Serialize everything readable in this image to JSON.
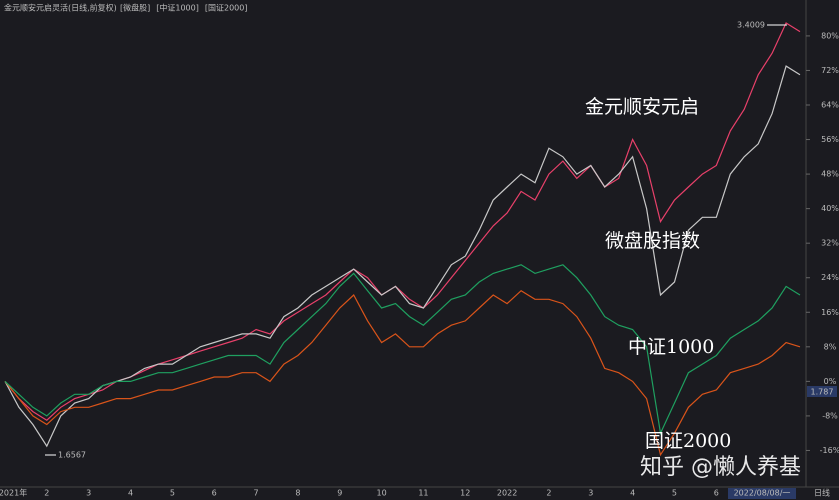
{
  "chart_data": {
    "type": "line",
    "title": "金元顺安元启灵活(日线,前复权)",
    "legend": [
      {
        "label": "[微盘股]",
        "series": 1
      },
      {
        "label": "[中证1000]",
        "series": 2
      },
      {
        "label": "[国证2000]",
        "series": 3
      }
    ],
    "categories": [
      "2021年",
      null,
      null,
      "2",
      null,
      null,
      "3",
      null,
      null,
      "4",
      null,
      null,
      "5",
      null,
      null,
      "6",
      null,
      null,
      "7",
      null,
      null,
      "8",
      null,
      null,
      "9",
      null,
      null,
      "10",
      null,
      null,
      "11",
      null,
      null,
      "12",
      null,
      null,
      "2022",
      null,
      null,
      "2",
      null,
      null,
      "3",
      null,
      null,
      "4",
      null,
      null,
      "5",
      null,
      null,
      "6",
      null,
      null,
      "7",
      null,
      null,
      "2022/08/08/一"
    ],
    "period_label": "日线",
    "series": [
      {
        "name": "金元顺安元启",
        "color": "#e8406a",
        "values": [
          0,
          -4,
          -7,
          -9,
          -6,
          -4,
          -3,
          -2,
          0,
          1,
          2.5,
          4,
          5,
          6,
          7,
          8,
          9,
          10,
          12,
          11,
          14,
          16,
          18,
          20,
          23,
          26,
          24,
          20,
          22,
          19,
          17,
          20,
          24,
          28,
          32,
          36,
          39,
          44,
          42,
          48,
          51,
          47,
          50,
          45,
          47,
          56,
          50,
          37,
          42,
          45,
          48,
          50,
          58,
          63,
          71,
          76,
          83,
          81
        ]
      },
      {
        "name": "微盘股指数",
        "color": "#c8c8c8",
        "values": [
          0,
          -6,
          -10,
          -15,
          -8,
          -5,
          -4,
          -1,
          0,
          1,
          3,
          4,
          4,
          6,
          8,
          9,
          10,
          11,
          11,
          10,
          15,
          17,
          20,
          22,
          24,
          26,
          23,
          20,
          22,
          18,
          17,
          22,
          27,
          29,
          35,
          42,
          45,
          48,
          46,
          54,
          52,
          48,
          50,
          45,
          48,
          52,
          40,
          20,
          23,
          35,
          38,
          38,
          48,
          52,
          55,
          62,
          73,
          71
        ]
      },
      {
        "name": "中证1000",
        "color": "#d9541a",
        "values": [
          0,
          -4,
          -8,
          -10,
          -7,
          -6,
          -6,
          -5,
          -4,
          -4,
          -3,
          -2,
          -2,
          -1,
          0,
          1,
          1,
          2,
          2,
          0,
          4,
          6,
          9,
          13,
          17,
          20,
          14,
          9,
          11,
          8,
          8,
          11,
          13,
          14,
          17,
          20,
          18,
          21,
          19,
          19,
          18,
          15,
          10,
          3,
          2,
          0,
          -4,
          -17,
          -12,
          -6,
          -3,
          -2,
          2,
          3,
          4,
          6,
          9,
          8
        ]
      },
      {
        "name": "国证2000",
        "color": "#1fa060",
        "values": [
          0,
          -3,
          -6,
          -8,
          -5,
          -3,
          -3,
          -1,
          0,
          0,
          1,
          2,
          2,
          3,
          4,
          5,
          6,
          6,
          6,
          4,
          9,
          12,
          15,
          18,
          22,
          25,
          21,
          17,
          18,
          15,
          13,
          16,
          19,
          20,
          23,
          25,
          26,
          27,
          25,
          26,
          27,
          24,
          20,
          15,
          13,
          12,
          8,
          -12,
          -5,
          2,
          4,
          6,
          10,
          12,
          14,
          17,
          22,
          20
        ]
      }
    ],
    "annotations": {
      "high": "3.4009",
      "low": "1.6567",
      "current": "1.787"
    },
    "watermark": "知乎 @懒人养基",
    "ylim": [
      -24,
      86
    ],
    "yticks": [
      {
        "value": 80,
        "label": "80%"
      },
      {
        "value": 72,
        "label": "72%"
      },
      {
        "value": 64,
        "label": "64%"
      },
      {
        "value": 56,
        "label": "56%"
      },
      {
        "value": 48,
        "label": "48%"
      },
      {
        "value": 40,
        "label": "40%"
      },
      {
        "value": 32,
        "label": "32%"
      },
      {
        "value": 24,
        "label": "24%"
      },
      {
        "value": 16,
        "label": "16%"
      },
      {
        "value": 8,
        "label": "8%"
      },
      {
        "value": 0,
        "label": "0%"
      },
      {
        "value": -8,
        "label": "-8%"
      },
      {
        "value": -16,
        "label": "-16%"
      }
    ],
    "grid": false
  }
}
